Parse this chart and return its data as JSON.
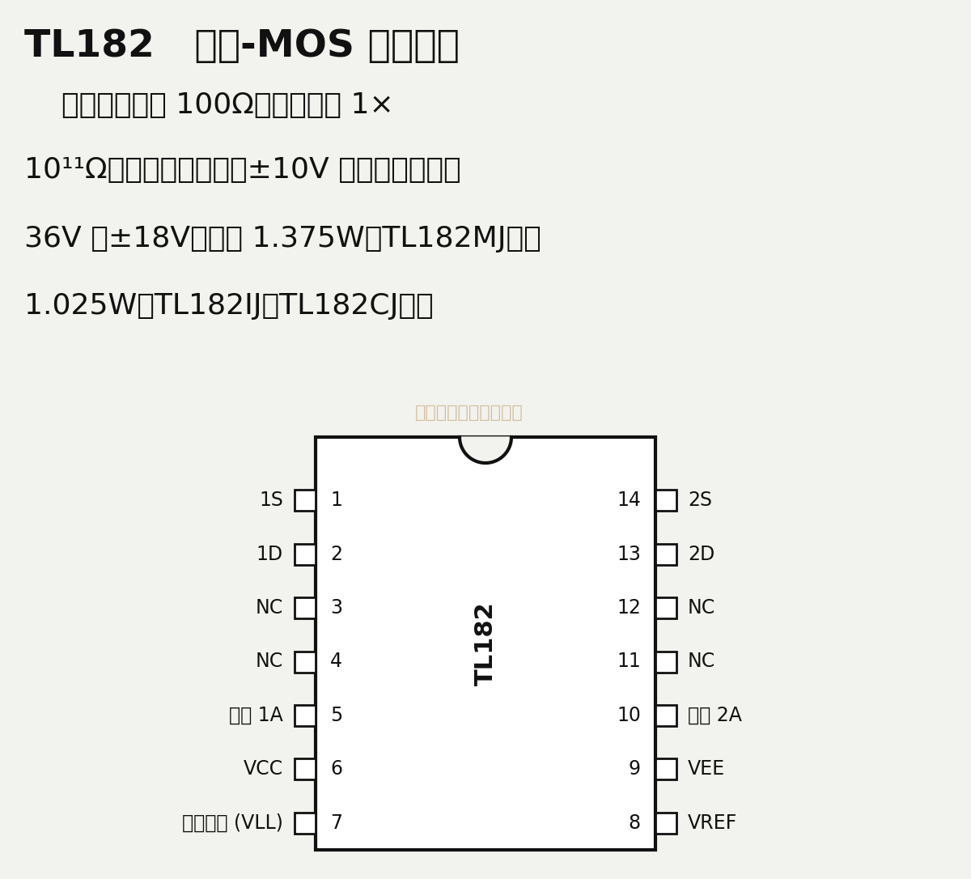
{
  "title": "TL182   双极-MOS 模拟开关",
  "description_lines": [
    "    开关接通电阻 100Ω，开路电阻 1×",
    "10¹¹Ω；输入模拟信号在±10V 内；工作电压为",
    "36V 或±18V；功耗 1.375W（TL182MJ）、",
    "1.025W（TL182IJ、TL182CJ）。"
  ],
  "watermark": "杭州将鑫科技有限公司",
  "left_pins": [
    {
      "num": "1",
      "label": "1S"
    },
    {
      "num": "2",
      "label": "1D"
    },
    {
      "num": "3",
      "label": "NC"
    },
    {
      "num": "4",
      "label": "NC"
    },
    {
      "num": "5",
      "label": "控制 1A"
    },
    {
      "num": "6",
      "label": "VCC"
    },
    {
      "num": "7",
      "label": "逻辑电源 (VLL)"
    }
  ],
  "right_pins": [
    {
      "num": "14",
      "label": "2S"
    },
    {
      "num": "13",
      "label": "2D"
    },
    {
      "num": "12",
      "label": "NC"
    },
    {
      "num": "11",
      "label": "NC"
    },
    {
      "num": "10",
      "label": "控制 2A"
    },
    {
      "num": "9",
      "label": "VEE"
    },
    {
      "num": "8",
      "label": "VREF"
    }
  ],
  "chip_label": "TL182",
  "bg_color": "#f2f2ee",
  "text_color": "#111111",
  "chip_color": "#ffffff",
  "chip_border_color": "#111111",
  "watermark_color": "#c8a878"
}
